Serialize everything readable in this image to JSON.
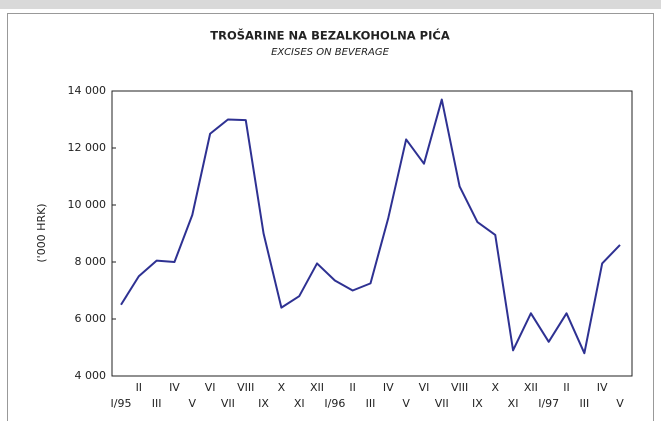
{
  "chart_data": {
    "type": "line",
    "title": "TROŠARINE NA BEZALKOHOLNA PIĆA",
    "subtitle": "EXCISES ON BEVERAGE",
    "y_label": "('000 HRK)",
    "categories": [
      "I/95",
      "II",
      "III",
      "IV",
      "V",
      "VI",
      "VII",
      "VIII",
      "IX",
      "X",
      "XI",
      "XII",
      "I/96",
      "II",
      "III",
      "IV",
      "V",
      "VI",
      "VII",
      "VIII",
      "IX",
      "X",
      "XI",
      "XII",
      "I/97",
      "II",
      "III",
      "IV",
      "V"
    ],
    "series": [
      {
        "color": "#2e3192",
        "values": [
          6500,
          7500,
          8050,
          8000,
          9650,
          12500,
          13000,
          12980,
          9000,
          6400,
          6800,
          7950,
          7350,
          7000,
          7250,
          9550,
          12300,
          11450,
          13700,
          10650,
          9400,
          8950,
          4900,
          6200,
          5200,
          6200,
          4800,
          7950,
          8600
        ]
      }
    ],
    "ylim": [
      4000,
      14000
    ],
    "yticks": [
      {
        "value": 4000,
        "label": "4 000"
      },
      {
        "value": 6000,
        "label": "6 000"
      },
      {
        "value": 8000,
        "label": "8 000"
      },
      {
        "value": 10000,
        "label": "10 000"
      },
      {
        "value": 12000,
        "label": "12 000"
      },
      {
        "value": 14000,
        "label": "14 000"
      }
    ]
  }
}
